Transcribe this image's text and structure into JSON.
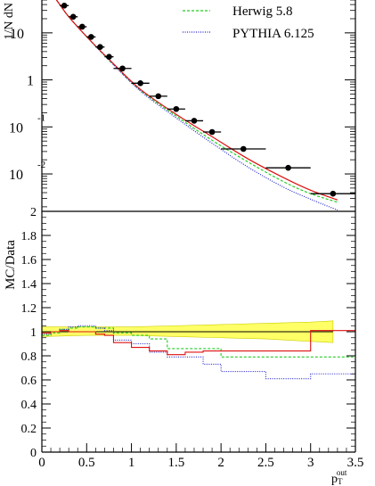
{
  "chart_data": [
    {
      "type": "line",
      "panel": "top",
      "ylabel": "1/N dN",
      "yscale": "log",
      "ylim": [
        0.0016,
        50
      ],
      "xlim": [
        0,
        3.5
      ],
      "yticks": [
        {
          "v": 10,
          "label": "10"
        },
        {
          "v": 1,
          "label": "1"
        },
        {
          "v": 0.1,
          "label": "10",
          "exp": "-1"
        },
        {
          "v": 0.01,
          "label": "10",
          "exp": "-2"
        }
      ],
      "legend_position": "top-right",
      "series": [
        {
          "name": "Herwig 5.8",
          "color": "#22cc22",
          "style": "dashed",
          "x": [
            0.05,
            0.2,
            0.3,
            0.5,
            0.8,
            1.1,
            1.5,
            1.9,
            2.3,
            2.7,
            3.0,
            3.3
          ],
          "y": [
            100,
            40,
            22,
            8.3,
            2.1,
            0.6,
            0.17,
            0.052,
            0.018,
            0.0068,
            0.0038,
            0.0025
          ]
        },
        {
          "name": "PYTHIA 6.125",
          "color": "#2222cc",
          "style": "dotted",
          "x": [
            0.05,
            0.2,
            0.3,
            0.5,
            0.8,
            1.1,
            1.5,
            1.9,
            2.3,
            2.7,
            3.0,
            3.3
          ],
          "y": [
            100,
            40,
            22,
            8.3,
            2.1,
            0.58,
            0.155,
            0.045,
            0.014,
            0.0052,
            0.0029,
            0.0017
          ]
        },
        {
          "name": "",
          "color": "#dd1111",
          "style": "solid",
          "x": [
            0.05,
            0.2,
            0.3,
            0.5,
            0.8,
            1.1,
            1.5,
            1.9,
            2.3,
            2.7,
            3.0,
            3.3
          ],
          "y": [
            100,
            40,
            22,
            8.3,
            2.2,
            0.63,
            0.185,
            0.062,
            0.021,
            0.0083,
            0.0045,
            0.0028
          ]
        }
      ],
      "data_points": {
        "name": "Data",
        "points": [
          {
            "x": 0.05,
            "y": 100,
            "xerr": 0.05
          },
          {
            "x": 0.15,
            "y": 60,
            "xerr": 0.05
          },
          {
            "x": 0.25,
            "y": 38,
            "xerr": 0.05
          },
          {
            "x": 0.35,
            "y": 22,
            "xerr": 0.05
          },
          {
            "x": 0.45,
            "y": 13.5,
            "xerr": 0.05
          },
          {
            "x": 0.55,
            "y": 8.2,
            "xerr": 0.05
          },
          {
            "x": 0.65,
            "y": 5.0,
            "xerr": 0.05
          },
          {
            "x": 0.75,
            "y": 3.1,
            "xerr": 0.05
          },
          {
            "x": 0.9,
            "y": 1.75,
            "xerr": 0.1
          },
          {
            "x": 1.1,
            "y": 0.85,
            "xerr": 0.1
          },
          {
            "x": 1.3,
            "y": 0.45,
            "xerr": 0.1
          },
          {
            "x": 1.5,
            "y": 0.24,
            "xerr": 0.1
          },
          {
            "x": 1.7,
            "y": 0.135,
            "xerr": 0.1
          },
          {
            "x": 1.9,
            "y": 0.078,
            "xerr": 0.1
          },
          {
            "x": 2.25,
            "y": 0.034,
            "xerr": 0.25
          },
          {
            "x": 2.75,
            "y": 0.0135,
            "xerr": 0.25
          },
          {
            "x": 3.25,
            "y": 0.0038,
            "xerr": 0.25
          }
        ]
      }
    },
    {
      "type": "line",
      "panel": "bottom",
      "ylabel": "MC/Data",
      "xlabel": "p_T^out",
      "xlabel_main": "p",
      "xlabel_sub": "T",
      "xlabel_sup": "out",
      "xlim": [
        0,
        3.5
      ],
      "ylim": [
        0,
        2
      ],
      "xticks": [
        0,
        0.5,
        1,
        1.5,
        2,
        2.5,
        3,
        3.5
      ],
      "yticks": [
        0,
        0.2,
        0.4,
        0.6,
        0.8,
        1,
        1.2,
        1.4,
        1.6,
        1.8,
        2
      ],
      "reference_line": 1,
      "band": {
        "color": "#ffff66",
        "x": [
          0,
          0.5,
          1,
          1.5,
          2,
          2.5,
          3,
          3.25
        ],
        "upper": [
          1.04,
          1.04,
          1.04,
          1.05,
          1.06,
          1.07,
          1.08,
          1.09
        ],
        "lower": [
          0.96,
          0.97,
          0.97,
          0.96,
          0.95,
          0.94,
          0.92,
          0.91
        ]
      },
      "bin_edges": [
        0,
        0.1,
        0.2,
        0.3,
        0.4,
        0.5,
        0.6,
        0.7,
        0.8,
        1.0,
        1.2,
        1.4,
        1.6,
        1.8,
        2.0,
        2.5,
        3.0,
        3.5
      ],
      "series": [
        {
          "name": "Herwig 5.8",
          "color": "#22cc22",
          "style": "dashed",
          "values": [
            0.97,
            0.99,
            1.02,
            1.03,
            1.04,
            1.04,
            1.03,
            1.03,
            0.99,
            0.97,
            0.94,
            0.86,
            0.86,
            0.86,
            0.79,
            0.79,
            0.79
          ]
        },
        {
          "name": "PYTHIA 6.125",
          "color": "#2222cc",
          "style": "dotted",
          "values": [
            0.98,
            1.0,
            1.02,
            1.04,
            1.05,
            1.05,
            1.03,
            1.01,
            0.93,
            0.9,
            0.83,
            0.79,
            0.79,
            0.73,
            0.67,
            0.61,
            0.65
          ]
        },
        {
          "name": "",
          "color": "#dd1111",
          "style": "solid",
          "values": [
            0.99,
            1.0,
            1.01,
            1.0,
            1.0,
            1.0,
            0.98,
            0.97,
            0.91,
            0.87,
            0.84,
            0.81,
            0.83,
            0.84,
            0.84,
            0.84,
            1.01
          ]
        }
      ]
    }
  ]
}
